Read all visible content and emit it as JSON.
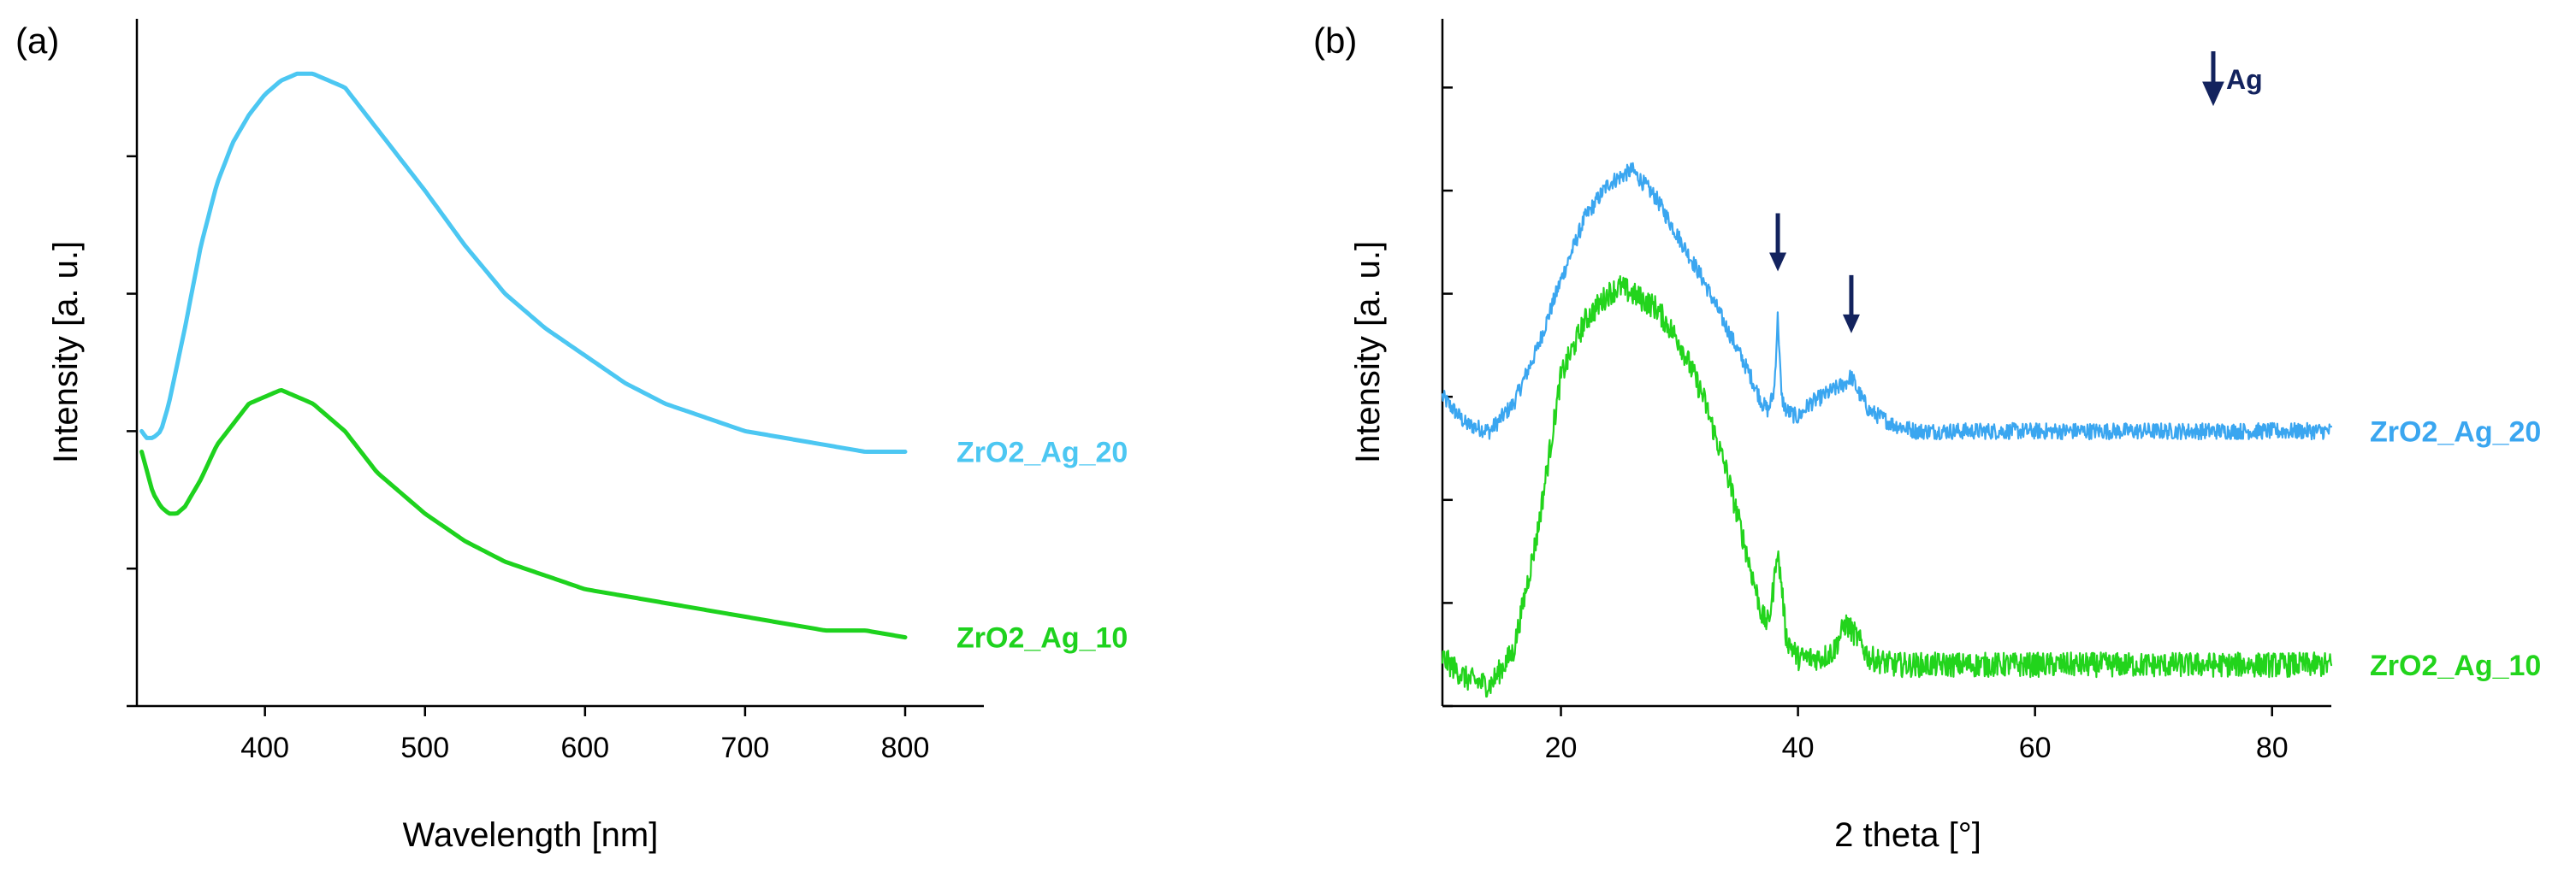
{
  "chart_data": [
    {
      "panel": "(a)",
      "type": "line",
      "xlabel": "Wavelength  [nm]",
      "ylabel": "Intensity [a. u.]",
      "xlim": [
        320,
        800
      ],
      "xticks": [
        400,
        500,
        600,
        700,
        800
      ],
      "xtick_labels": [
        "400",
        "500",
        "600",
        "700",
        "800"
      ],
      "ylim": [
        0,
        1
      ],
      "ytick_positions": [
        0,
        0.2,
        0.4,
        0.6,
        0.8
      ],
      "yticks_labeled": false,
      "series": [
        {
          "name": "ZrO2_Ag_20",
          "color": "#4cc7f2",
          "points": [
            [
              323,
              0.4
            ],
            [
              326,
              0.39
            ],
            [
              330,
              0.39
            ],
            [
              335,
              0.4
            ],
            [
              340,
              0.44
            ],
            [
              350,
              0.55
            ],
            [
              360,
              0.67
            ],
            [
              370,
              0.76
            ],
            [
              380,
              0.82
            ],
            [
              390,
              0.86
            ],
            [
              400,
              0.89
            ],
            [
              410,
              0.91
            ],
            [
              420,
              0.92
            ],
            [
              430,
              0.92
            ],
            [
              440,
              0.91
            ],
            [
              450,
              0.9
            ],
            [
              460,
              0.87
            ],
            [
              470,
              0.84
            ],
            [
              480,
              0.81
            ],
            [
              490,
              0.78
            ],
            [
              500,
              0.75
            ],
            [
              525,
              0.67
            ],
            [
              550,
              0.6
            ],
            [
              575,
              0.55
            ],
            [
              600,
              0.51
            ],
            [
              625,
              0.47
            ],
            [
              650,
              0.44
            ],
            [
              675,
              0.42
            ],
            [
              700,
              0.4
            ],
            [
              725,
              0.39
            ],
            [
              750,
              0.38
            ],
            [
              775,
              0.37
            ],
            [
              800,
              0.37
            ]
          ]
        },
        {
          "name": "ZrO2_Ag_10",
          "color": "#1ed21e",
          "points": [
            [
              323,
              0.37
            ],
            [
              330,
              0.31
            ],
            [
              335,
              0.29
            ],
            [
              340,
              0.28
            ],
            [
              345,
              0.28
            ],
            [
              350,
              0.29
            ],
            [
              360,
              0.33
            ],
            [
              370,
              0.38
            ],
            [
              380,
              0.41
            ],
            [
              390,
              0.44
            ],
            [
              400,
              0.45
            ],
            [
              410,
              0.46
            ],
            [
              420,
              0.45
            ],
            [
              430,
              0.44
            ],
            [
              440,
              0.42
            ],
            [
              450,
              0.4
            ],
            [
              460,
              0.37
            ],
            [
              470,
              0.34
            ],
            [
              480,
              0.32
            ],
            [
              490,
              0.3
            ],
            [
              500,
              0.28
            ],
            [
              525,
              0.24
            ],
            [
              550,
              0.21
            ],
            [
              575,
              0.19
            ],
            [
              600,
              0.17
            ],
            [
              625,
              0.16
            ],
            [
              650,
              0.15
            ],
            [
              675,
              0.14
            ],
            [
              700,
              0.13
            ],
            [
              725,
              0.12
            ],
            [
              750,
              0.11
            ],
            [
              775,
              0.11
            ],
            [
              800,
              0.1
            ]
          ]
        }
      ]
    },
    {
      "panel": "(b)",
      "type": "line",
      "xlabel": "2 theta  [°]",
      "ylabel": "Intensity [a. u.]",
      "xlim": [
        10,
        85
      ],
      "xticks": [
        20,
        40,
        60,
        80
      ],
      "xtick_labels": [
        "20",
        "40",
        "60",
        "80"
      ],
      "ylim": [
        0,
        1
      ],
      "ytick_positions": [
        0,
        0.15,
        0.3,
        0.45,
        0.6,
        0.75,
        0.9
      ],
      "yticks_labeled": false,
      "series": [
        {
          "name": "ZrO2_Ag_20",
          "color": "#3aa6f0",
          "noise": 0.012,
          "points": [
            [
              10,
              0.45
            ],
            [
              12,
              0.41
            ],
            [
              14,
              0.4
            ],
            [
              16,
              0.44
            ],
            [
              18,
              0.52
            ],
            [
              20,
              0.62
            ],
            [
              22,
              0.71
            ],
            [
              24,
              0.76
            ],
            [
              26,
              0.78
            ],
            [
              28,
              0.74
            ],
            [
              30,
              0.68
            ],
            [
              32,
              0.62
            ],
            [
              34,
              0.55
            ],
            [
              36,
              0.48
            ],
            [
              37,
              0.44
            ],
            [
              37.5,
              0.43
            ],
            [
              38,
              0.46
            ],
            [
              38.3,
              0.57
            ],
            [
              38.6,
              0.45
            ],
            [
              39,
              0.43
            ],
            [
              40,
              0.42
            ],
            [
              41,
              0.44
            ],
            [
              42,
              0.45
            ],
            [
              43,
              0.46
            ],
            [
              44,
              0.47
            ],
            [
              44.5,
              0.48
            ],
            [
              45,
              0.46
            ],
            [
              46,
              0.43
            ],
            [
              48,
              0.41
            ],
            [
              50,
              0.4
            ],
            [
              55,
              0.4
            ],
            [
              60,
              0.4
            ],
            [
              65,
              0.4
            ],
            [
              70,
              0.4
            ],
            [
              75,
              0.4
            ],
            [
              80,
              0.4
            ],
            [
              85,
              0.4
            ]
          ]
        },
        {
          "name": "ZrO2_Ag_10",
          "color": "#22d41c",
          "noise": 0.018,
          "points": [
            [
              10,
              0.07
            ],
            [
              12,
              0.04
            ],
            [
              14,
              0.03
            ],
            [
              16,
              0.08
            ],
            [
              18,
              0.25
            ],
            [
              20,
              0.48
            ],
            [
              22,
              0.56
            ],
            [
              23,
              0.58
            ],
            [
              24,
              0.6
            ],
            [
              25,
              0.61
            ],
            [
              26,
              0.6
            ],
            [
              28,
              0.58
            ],
            [
              30,
              0.53
            ],
            [
              32,
              0.45
            ],
            [
              34,
              0.34
            ],
            [
              36,
              0.2
            ],
            [
              37,
              0.13
            ],
            [
              37.5,
              0.12
            ],
            [
              38,
              0.18
            ],
            [
              38.2,
              0.23
            ],
            [
              38.6,
              0.18
            ],
            [
              39,
              0.1
            ],
            [
              40,
              0.07
            ],
            [
              42,
              0.07
            ],
            [
              43,
              0.08
            ],
            [
              44,
              0.12
            ],
            [
              45,
              0.1
            ],
            [
              46,
              0.07
            ],
            [
              48,
              0.06
            ],
            [
              50,
              0.06
            ],
            [
              55,
              0.06
            ],
            [
              60,
              0.06
            ],
            [
              65,
              0.06
            ],
            [
              70,
              0.06
            ],
            [
              75,
              0.06
            ],
            [
              80,
              0.06
            ],
            [
              85,
              0.06
            ]
          ]
        }
      ],
      "markers": [
        {
          "name": "Ag",
          "x": 38.3
        },
        {
          "name": "Ag",
          "x": 44.5
        }
      ],
      "legend": {
        "symbol": "arrow-down",
        "label": "Ag",
        "color": "#13235e",
        "position": "top-right"
      }
    }
  ]
}
